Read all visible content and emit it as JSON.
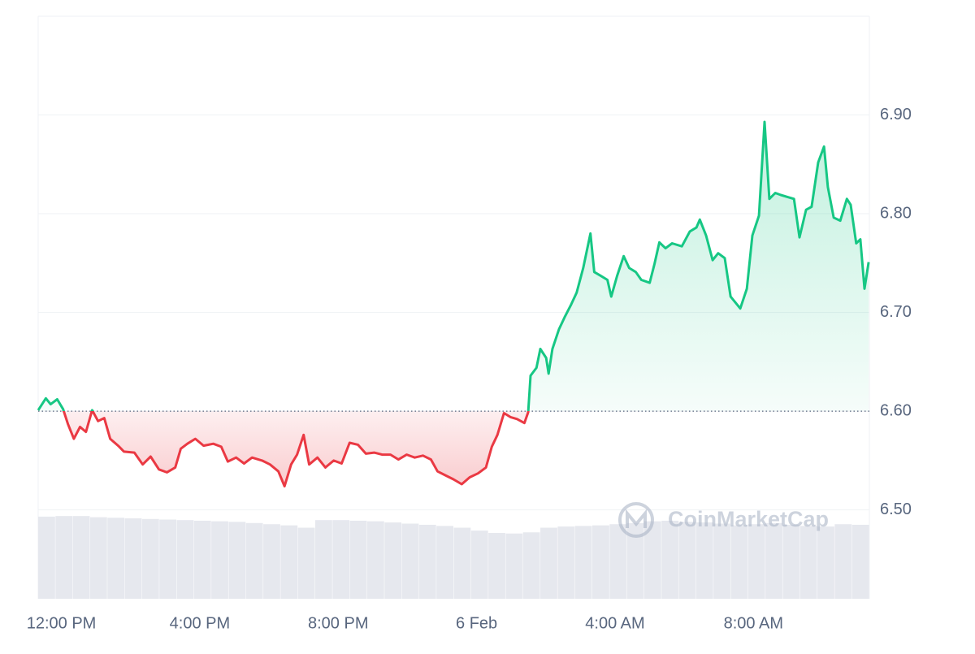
{
  "chart_data": {
    "type": "line",
    "x": [
      -0.67,
      -0.45,
      -0.31,
      -0.12,
      0.05,
      0.19,
      0.36,
      0.54,
      0.71,
      0.89,
      1.06,
      1.24,
      1.41,
      1.64,
      1.81,
      2.11,
      2.35,
      2.58,
      2.82,
      3.05,
      3.29,
      3.45,
      3.64,
      3.87,
      4.11,
      4.39,
      4.62,
      4.81,
      5.05,
      5.28,
      5.51,
      5.8,
      6.03,
      6.27,
      6.45,
      6.64,
      6.81,
      7.0,
      7.16,
      7.4,
      7.63,
      7.87,
      8.1,
      8.33,
      8.57,
      8.8,
      9.04,
      9.27,
      9.51,
      9.74,
      9.98,
      10.21,
      10.45,
      10.68,
      10.87,
      11.1,
      11.33,
      11.57,
      11.8,
      12.04,
      12.27,
      12.44,
      12.6,
      12.79,
      12.98,
      13.17,
      13.38,
      13.49,
      13.56,
      13.73,
      13.84,
      14.01,
      14.08,
      14.19,
      14.38,
      14.54,
      14.73,
      14.89,
      15.08,
      15.29,
      15.4,
      15.59,
      15.78,
      15.89,
      16.06,
      16.25,
      16.41,
      16.6,
      16.76,
      17.0,
      17.14,
      17.28,
      17.46,
      17.65,
      17.93,
      18.16,
      18.35,
      18.45,
      18.63,
      18.82,
      18.98,
      19.17,
      19.34,
      19.62,
      19.81,
      19.97,
      20.16,
      20.32,
      20.46,
      20.63,
      20.79,
      20.98,
      21.17,
      21.33,
      21.52,
      21.68,
      21.87,
      22.04,
      22.15,
      22.32,
      22.51,
      22.7,
      22.81,
      22.97,
      23.09,
      23.21,
      23.33
    ],
    "values": [
      6.601,
      6.613,
      6.607,
      6.612,
      6.602,
      6.587,
      6.572,
      6.584,
      6.579,
      6.601,
      6.59,
      6.593,
      6.572,
      6.565,
      6.559,
      6.558,
      6.546,
      6.554,
      6.541,
      6.538,
      6.543,
      6.562,
      6.567,
      6.572,
      6.565,
      6.567,
      6.564,
      6.549,
      6.553,
      6.547,
      6.553,
      6.55,
      6.546,
      6.539,
      6.524,
      6.546,
      6.556,
      6.576,
      6.546,
      6.553,
      6.543,
      6.55,
      6.547,
      6.568,
      6.566,
      6.557,
      6.558,
      6.556,
      6.556,
      6.551,
      6.556,
      6.553,
      6.555,
      6.551,
      6.539,
      6.535,
      6.531,
      6.526,
      6.533,
      6.537,
      6.543,
      6.564,
      6.576,
      6.598,
      6.594,
      6.592,
      6.588,
      6.599,
      6.636,
      6.644,
      6.663,
      6.654,
      6.638,
      6.663,
      6.683,
      6.695,
      6.708,
      6.72,
      6.745,
      6.78,
      6.741,
      6.737,
      6.733,
      6.716,
      6.737,
      6.757,
      6.745,
      6.741,
      6.733,
      6.73,
      6.749,
      6.771,
      6.765,
      6.77,
      6.767,
      6.782,
      6.786,
      6.794,
      6.778,
      6.753,
      6.76,
      6.755,
      6.716,
      6.704,
      6.724,
      6.778,
      6.798,
      6.893,
      6.815,
      6.821,
      6.819,
      6.817,
      6.815,
      6.776,
      6.804,
      6.807,
      6.852,
      6.868,
      6.827,
      6.796,
      6.793,
      6.815,
      6.809,
      6.77,
      6.774,
      6.724,
      6.751
    ],
    "baseline": 6.6,
    "color_up": "#16c784",
    "color_down": "#ea3943",
    "xlim": [
      -0.67,
      23.35
    ],
    "xticks": [
      {
        "value": 0,
        "label": "12:00 PM"
      },
      {
        "value": 4,
        "label": "4:00 PM"
      },
      {
        "value": 8,
        "label": "8:00 PM"
      },
      {
        "value": 12,
        "label": "6 Feb"
      },
      {
        "value": 16,
        "label": "4:00 AM"
      },
      {
        "value": 20,
        "label": "8:00 AM"
      }
    ],
    "ylim": [
      6.41,
      7.0
    ],
    "yticks": [
      {
        "value": 6.5,
        "label": "6.50"
      },
      {
        "value": 6.6,
        "label": "6.60"
      },
      {
        "value": 6.7,
        "label": "6.70"
      },
      {
        "value": 6.8,
        "label": "6.80"
      },
      {
        "value": 6.9,
        "label": "6.90"
      }
    ],
    "grid": true,
    "volume": {
      "color": "#e6e8ee",
      "lim": [
        0,
        100
      ],
      "values": [
        14.1,
        14.2,
        14.2,
        14.0,
        13.9,
        13.8,
        13.7,
        13.6,
        13.5,
        13.4,
        13.3,
        13.2,
        13.0,
        12.8,
        12.6,
        12.2,
        13.5,
        13.5,
        13.4,
        13.3,
        13.1,
        12.9,
        12.7,
        12.5,
        12.2,
        11.7,
        11.3,
        11.2,
        11.4,
        12.2,
        12.4,
        12.5,
        12.6,
        12.8,
        13.0,
        13.3,
        13.4,
        13.2,
        13.1,
        12.9,
        12.6,
        12.8,
        13.0,
        12.7,
        12.5,
        12.4,
        12.8,
        12.7
      ]
    },
    "watermark": "CoinMarketCap"
  }
}
